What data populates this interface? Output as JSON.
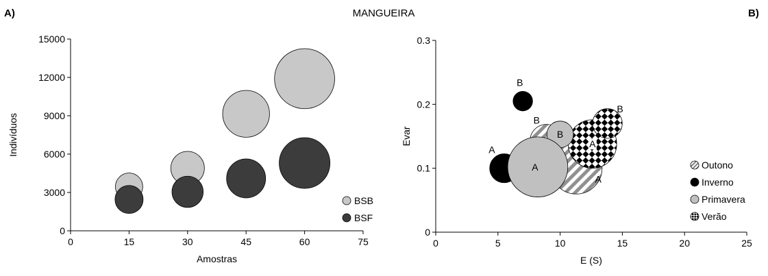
{
  "figure": {
    "title": "MANGUEIRA",
    "panel_a_label": "A)",
    "panel_b_label": "B)"
  },
  "chart_data": [
    {
      "type": "scatter",
      "subtype": "bubble",
      "panel": "A)",
      "xlabel": "Amostras",
      "ylabel": "Indivíduos",
      "xlim": [
        0,
        75
      ],
      "ylim": [
        0,
        15000
      ],
      "xticks": [
        0,
        15,
        30,
        45,
        60,
        75
      ],
      "yticks": [
        0,
        3000,
        6000,
        9000,
        12000,
        15000
      ],
      "grid": false,
      "legend_position": "bottom-right",
      "series": [
        {
          "name": "BSB",
          "color": "#c8c8c8",
          "points": [
            {
              "x": 15,
              "y": 3450,
              "r": 0.35
            },
            {
              "x": 30,
              "y": 4900,
              "r": 0.43
            },
            {
              "x": 45,
              "y": 9150,
              "r": 0.6
            },
            {
              "x": 60,
              "y": 11900,
              "r": 0.77
            }
          ]
        },
        {
          "name": "BSF",
          "color": "#3c3c3c",
          "points": [
            {
              "x": 15,
              "y": 2450,
              "r": 0.36
            },
            {
              "x": 30,
              "y": 3050,
              "r": 0.4
            },
            {
              "x": 45,
              "y": 4100,
              "r": 0.5
            },
            {
              "x": 60,
              "y": 5300,
              "r": 0.65
            }
          ]
        }
      ]
    },
    {
      "type": "scatter",
      "subtype": "bubble",
      "panel": "B)",
      "xlabel": "E (S)",
      "ylabel": "Evar",
      "xlim": [
        0,
        25
      ],
      "ylim": [
        0,
        0.3
      ],
      "xticks": [
        0,
        5,
        10,
        15,
        20,
        25
      ],
      "yticks": [
        0,
        0.1,
        0.2,
        0.3
      ],
      "ytick_labels": [
        "0",
        "0.1",
        "0.2",
        "0.3"
      ],
      "grid": false,
      "legend_position": "bottom-right",
      "series": [
        {
          "name": "Outono",
          "fill": "diagonal-stripes",
          "color": "#909090",
          "points": [
            {
              "x": 11.3,
              "y": 0.1,
              "label": "A",
              "r": 0.66
            },
            {
              "x": 8.9,
              "y": 0.143,
              "label": "B",
              "r": 0.42
            }
          ]
        },
        {
          "name": "Inverno",
          "fill": "solid",
          "color": "#000000",
          "points": [
            {
              "x": 5.5,
              "y": 0.1,
              "label": "A",
              "r": 0.37
            },
            {
              "x": 7.0,
              "y": 0.205,
              "label": "B",
              "r": 0.25
            }
          ]
        },
        {
          "name": "Primavera",
          "fill": "solid",
          "color": "#c0c0c0",
          "points": [
            {
              "x": 8.2,
              "y": 0.102,
              "label": "A",
              "r": 0.77
            },
            {
              "x": 10.0,
              "y": 0.153,
              "label": "B",
              "r": 0.34
            }
          ]
        },
        {
          "name": "Verão",
          "fill": "checker",
          "color": "#000000",
          "points": [
            {
              "x": 12.6,
              "y": 0.138,
              "label": "A",
              "r": 0.62
            },
            {
              "x": 13.8,
              "y": 0.17,
              "label": "B",
              "r": 0.38
            }
          ]
        }
      ],
      "draw_order": [
        [
          "Outono",
          0
        ],
        [
          "Verão",
          0
        ],
        [
          "Outono",
          1
        ],
        [
          "Primavera",
          1
        ],
        [
          "Verão",
          1
        ],
        [
          "Inverno",
          0
        ],
        [
          "Inverno",
          1
        ],
        [
          "Primavera",
          0
        ]
      ]
    }
  ]
}
